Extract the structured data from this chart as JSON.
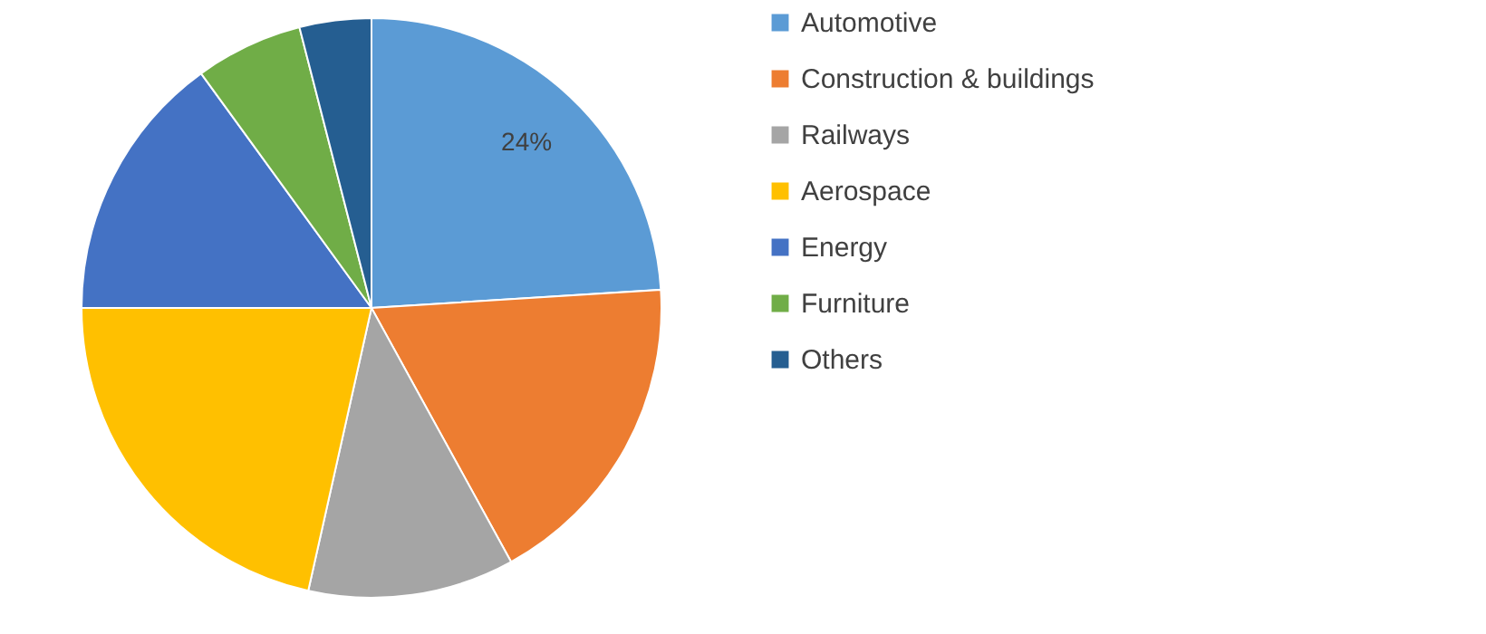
{
  "chart_data": {
    "type": "pie",
    "categories": [
      "Automotive",
      "Construction & buildings",
      "Railways",
      "Aerospace",
      "Energy",
      "Furniture",
      "Others"
    ],
    "values": [
      24,
      18,
      11.5,
      21.5,
      15,
      6,
      4
    ],
    "colors": [
      "#5b9bd5",
      "#ed7d31",
      "#a5a5a5",
      "#ffc000",
      "#4472c4",
      "#70ad47",
      "#255e91"
    ],
    "value_labels": [
      "24%",
      null,
      null,
      null,
      null,
      null,
      null
    ],
    "legend": "right"
  }
}
